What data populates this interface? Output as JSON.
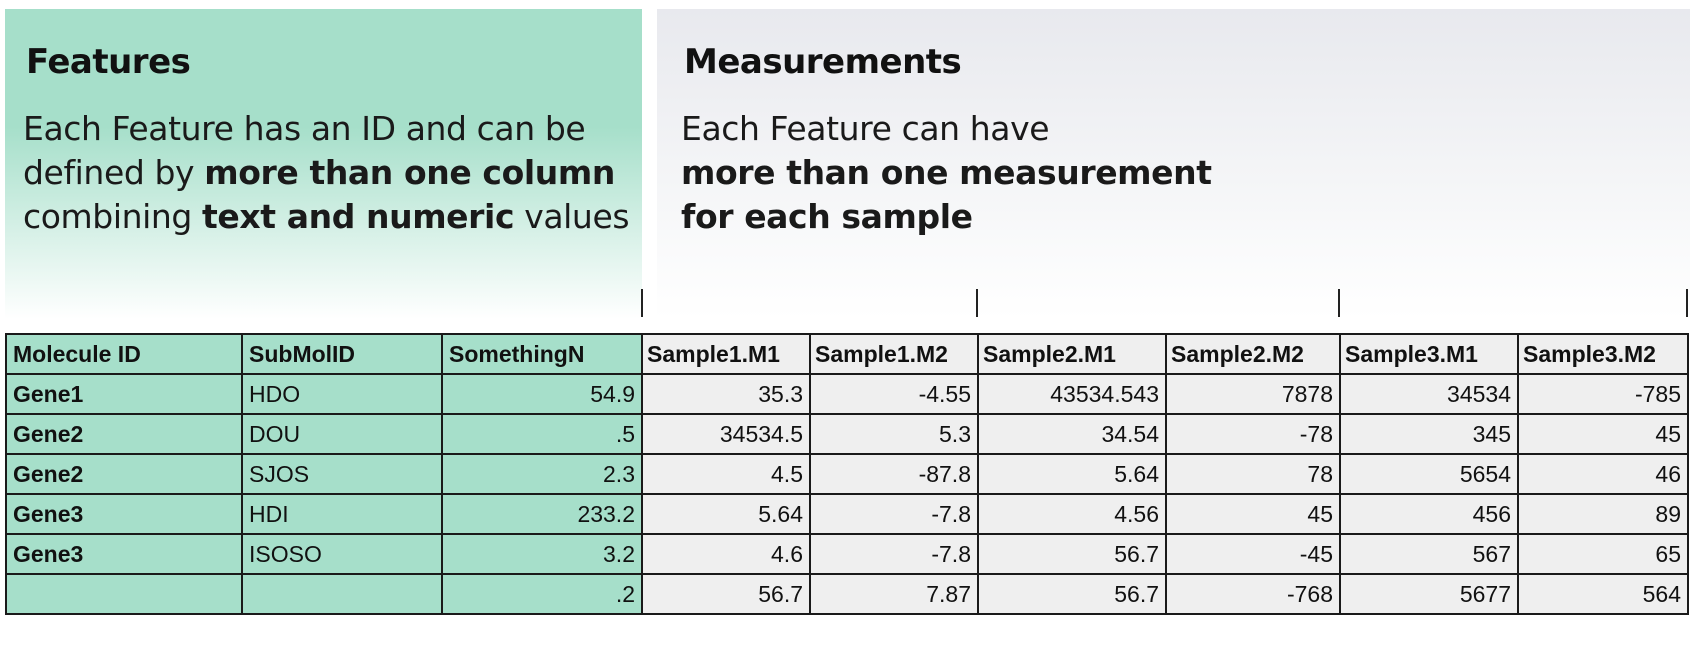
{
  "features_panel": {
    "title": "Features",
    "desc_1": "Each Feature has an ID and can be",
    "desc_2a": "defined by ",
    "desc_2b": "more than one column",
    "desc_3a": "combining ",
    "desc_3b": "text and numeric",
    "desc_3c": " values"
  },
  "measurements_panel": {
    "title": "Measurements",
    "desc_1": "Each Feature can have",
    "desc_2": "more than one measurement",
    "desc_3": "for each sample"
  },
  "colors": {
    "feature_fill": "#a6dfca",
    "measurement_fill": "#efefef",
    "grid_line": "#1a1a1a"
  },
  "table": {
    "feature_headers": [
      "Molecule ID",
      "SubMolID",
      "SomethingN"
    ],
    "measurement_headers": [
      "Sample1.M1",
      "Sample1.M2",
      "Sample2.M1",
      "Sample2.M2",
      "Sample3.M1",
      "Sample3.M2"
    ],
    "rows": [
      {
        "features": [
          "Gene1",
          "HDO",
          "54.9"
        ],
        "measurements": [
          "35.3",
          "-4.55",
          "43534.543",
          "7878",
          "34534",
          "-785"
        ]
      },
      {
        "features": [
          "Gene2",
          "DOU",
          ".5"
        ],
        "measurements": [
          "34534.5",
          "5.3",
          "34.54",
          "-78",
          "345",
          "45"
        ]
      },
      {
        "features": [
          "Gene2",
          "SJOS",
          "2.3"
        ],
        "measurements": [
          "4.5",
          "-87.8",
          "5.64",
          "78",
          "5654",
          "46"
        ]
      },
      {
        "features": [
          "Gene3",
          "HDI",
          "233.2"
        ],
        "measurements": [
          "5.64",
          "-7.8",
          "4.56",
          "45",
          "456",
          "89"
        ]
      },
      {
        "features": [
          "Gene3",
          "ISOSO",
          "3.2"
        ],
        "measurements": [
          "4.6",
          "-7.8",
          "56.7",
          "-45",
          "567",
          "65"
        ]
      },
      {
        "features": [
          "",
          "",
          ".2"
        ],
        "measurements": [
          "56.7",
          "7.87",
          "56.7",
          "-768",
          "5677",
          "564"
        ]
      }
    ]
  }
}
